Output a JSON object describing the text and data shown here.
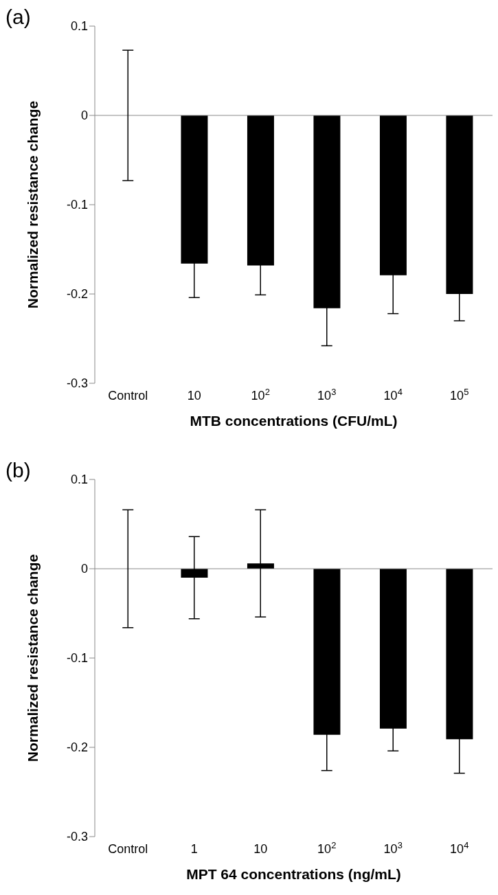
{
  "chart_data": [
    {
      "type": "bar",
      "title": "(a)",
      "xlabel": "MTB concentrations (CFU/mL)",
      "ylabel": "Normalized resistance change",
      "categories": [
        "Control",
        "10",
        "10$^{2}$",
        "10$^{3}$",
        "10$^{4}$",
        "10$^{5}$"
      ],
      "values": [
        0,
        -0.166,
        -0.168,
        -0.216,
        -0.179,
        -0.2
      ],
      "errors": [
        0.073,
        0.038,
        0.033,
        0.042,
        0.043,
        0.03
      ],
      "color": "#000000",
      "ylim": [
        -0.3,
        0.1
      ],
      "yticks": [
        -0.3,
        -0.2,
        -0.1,
        0,
        0.1
      ],
      "grid": false,
      "ref_lines": [
        {
          "axis": "y",
          "value": 0,
          "color": "#888888"
        }
      ]
    },
    {
      "type": "bar",
      "title": "(b)",
      "xlabel": "MPT 64 concentrations (ng/mL)",
      "ylabel": "Normalized resistance change",
      "categories": [
        "Control",
        "1",
        "10",
        "10$^{2}$",
        "10$^{3}$",
        "10$^{4}$"
      ],
      "values": [
        0,
        -0.01,
        0.006,
        -0.186,
        -0.179,
        -0.191
      ],
      "errors": [
        0.066,
        0.046,
        0.06,
        0.04,
        0.025,
        0.038
      ],
      "color": "#000000",
      "ylim": [
        -0.3,
        0.1
      ],
      "yticks": [
        -0.3,
        -0.2,
        -0.1,
        0,
        0.1
      ],
      "grid": false,
      "ref_lines": [
        {
          "axis": "y",
          "value": 0,
          "color": "#888888"
        }
      ]
    }
  ]
}
